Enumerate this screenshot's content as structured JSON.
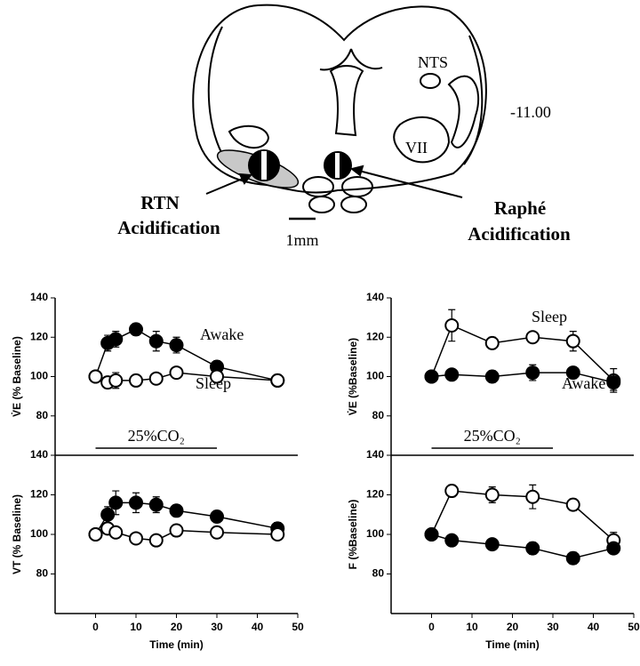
{
  "diagram": {
    "nts": "NTS",
    "level": "-11.00",
    "vii": "VII",
    "rtn": "RTN",
    "rtn_sub": "Acidification",
    "raphe": "Raphé",
    "raphe_sub": "Acidification",
    "scale": "1mm"
  },
  "chart_data": [
    {
      "type": "line",
      "ylabel": "V̇E (% Baseline)",
      "xlim": [
        -10,
        50
      ],
      "ylim": [
        60,
        140
      ],
      "yticks": [
        80,
        100,
        120,
        140
      ],
      "co2_bar": {
        "label": "25%CO₂",
        "range": [
          0,
          30
        ]
      },
      "series": [
        {
          "name": "Awake",
          "color": "#000000",
          "x": [
            0,
            3,
            5,
            10,
            15,
            20,
            30,
            45
          ],
          "values": [
            100,
            117,
            119,
            124,
            118,
            116,
            105,
            98
          ],
          "errors": [
            1,
            4,
            4,
            3,
            5,
            4,
            3,
            3
          ]
        },
        {
          "name": "Sleep",
          "color": "#ffffff",
          "x": [
            0,
            3,
            5,
            10,
            15,
            20,
            30,
            45
          ],
          "values": [
            100,
            97,
            98,
            98,
            99,
            102,
            100,
            98
          ],
          "errors": [
            2,
            3,
            4,
            3,
            2,
            2,
            3,
            3
          ]
        }
      ]
    },
    {
      "type": "line",
      "ylabel": "VT (% Baseline)",
      "xlabel": "Time (min)",
      "xlim": [
        -10,
        50
      ],
      "ylim": [
        60,
        140
      ],
      "yticks": [
        80,
        100,
        120,
        140
      ],
      "xticks": [
        0,
        10,
        20,
        30,
        40,
        50
      ],
      "series": [
        {
          "color": "#000000",
          "x": [
            0,
            3,
            5,
            10,
            15,
            20,
            30,
            45
          ],
          "values": [
            100,
            110,
            116,
            116,
            115,
            112,
            109,
            103
          ],
          "errors": [
            1,
            4,
            6,
            5,
            4,
            3,
            3,
            3
          ]
        },
        {
          "color": "#ffffff",
          "x": [
            0,
            3,
            5,
            10,
            15,
            20,
            30,
            45
          ],
          "values": [
            100,
            103,
            101,
            98,
            97,
            102,
            101,
            100
          ],
          "errors": [
            2,
            2,
            2,
            2,
            2,
            3,
            3,
            2
          ]
        }
      ]
    },
    {
      "type": "line",
      "ylabel": "V̇E (%Baseline)",
      "xlim": [
        -10,
        50
      ],
      "ylim": [
        60,
        140
      ],
      "yticks": [
        80,
        100,
        120,
        140
      ],
      "co2_bar": {
        "label": "25%CO₂",
        "range": [
          0,
          30
        ]
      },
      "series": [
        {
          "name": "Sleep",
          "color": "#ffffff",
          "x": [
            0,
            5,
            15,
            25,
            35,
            45
          ],
          "values": [
            100,
            126,
            117,
            120,
            118,
            98
          ],
          "errors": [
            1,
            8,
            3,
            2,
            5,
            6
          ]
        },
        {
          "name": "Awake",
          "color": "#000000",
          "x": [
            0,
            5,
            15,
            25,
            35,
            45
          ],
          "values": [
            100,
            101,
            100,
            102,
            102,
            97
          ],
          "errors": [
            1,
            2,
            3,
            4,
            3,
            4
          ]
        }
      ]
    },
    {
      "type": "line",
      "ylabel": "F (%Baseline)",
      "xlabel": "Time (min)",
      "xlim": [
        -10,
        50
      ],
      "ylim": [
        60,
        140
      ],
      "yticks": [
        80,
        100,
        120,
        140
      ],
      "xticks": [
        0,
        10,
        20,
        30,
        40,
        50
      ],
      "series": [
        {
          "color": "#ffffff",
          "x": [
            0,
            5,
            15,
            25,
            35,
            45
          ],
          "values": [
            100,
            122,
            120,
            119,
            115,
            97
          ],
          "errors": [
            1,
            3,
            4,
            6,
            3,
            4
          ]
        },
        {
          "color": "#000000",
          "x": [
            0,
            5,
            15,
            25,
            35,
            45
          ],
          "values": [
            100,
            97,
            95,
            93,
            88,
            93
          ],
          "errors": [
            1,
            1,
            2,
            3,
            3,
            2
          ]
        }
      ]
    }
  ]
}
